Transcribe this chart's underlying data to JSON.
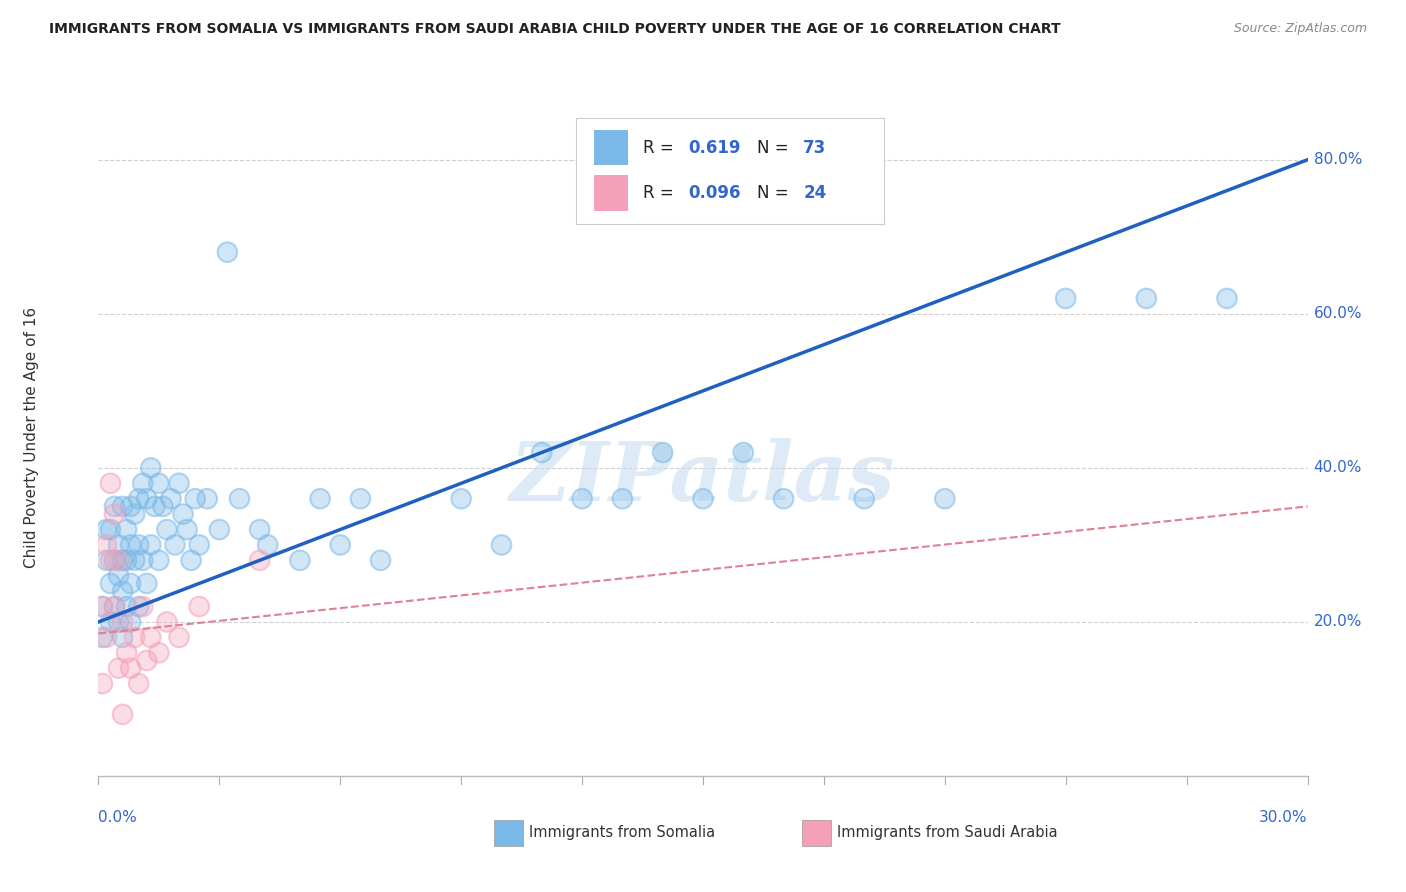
{
  "title": "IMMIGRANTS FROM SOMALIA VS IMMIGRANTS FROM SAUDI ARABIA CHILD POVERTY UNDER THE AGE OF 16 CORRELATION CHART",
  "source": "Source: ZipAtlas.com",
  "ylabel": "Child Poverty Under the Age of 16",
  "xlim": [
    0.0,
    0.3
  ],
  "ylim": [
    0.0,
    0.88
  ],
  "ytick_values": [
    0.2,
    0.4,
    0.6,
    0.8
  ],
  "ytick_labels": [
    "20.0%",
    "40.0%",
    "60.0%",
    "80.0%"
  ],
  "somalia_color": "#7ab8e8",
  "saudi_color": "#f4a0b8",
  "somalia_line_color": "#2060c0",
  "saudi_line_color": "#e08090",
  "r_n_color": "#3366cc",
  "somalia_R": "0.619",
  "somalia_N": "73",
  "saudi_R": "0.096",
  "saudi_N": "24",
  "legend_label_somalia": "Immigrants from Somalia",
  "legend_label_saudi": "Immigrants from Saudi Arabia",
  "watermark": "ZIPatlas",
  "somalia_trendline_x": [
    0.0,
    0.3
  ],
  "somalia_trendline_y": [
    0.2,
    0.8
  ],
  "saudi_trendline_x": [
    0.0,
    0.3
  ],
  "saudi_trendline_y": [
    0.185,
    0.35
  ],
  "somalia_x": [
    0.001,
    0.001,
    0.002,
    0.002,
    0.003,
    0.003,
    0.003,
    0.004,
    0.004,
    0.004,
    0.005,
    0.005,
    0.005,
    0.006,
    0.006,
    0.006,
    0.006,
    0.007,
    0.007,
    0.007,
    0.008,
    0.008,
    0.008,
    0.008,
    0.009,
    0.009,
    0.01,
    0.01,
    0.01,
    0.011,
    0.011,
    0.012,
    0.012,
    0.013,
    0.013,
    0.014,
    0.015,
    0.015,
    0.016,
    0.017,
    0.018,
    0.019,
    0.02,
    0.021,
    0.022,
    0.023,
    0.024,
    0.025,
    0.027,
    0.03,
    0.032,
    0.035,
    0.04,
    0.042,
    0.05,
    0.055,
    0.06,
    0.065,
    0.07,
    0.09,
    0.1,
    0.11,
    0.12,
    0.13,
    0.14,
    0.15,
    0.16,
    0.17,
    0.19,
    0.21,
    0.24,
    0.26,
    0.28
  ],
  "somalia_y": [
    0.22,
    0.18,
    0.28,
    0.32,
    0.25,
    0.2,
    0.32,
    0.28,
    0.22,
    0.35,
    0.2,
    0.26,
    0.3,
    0.18,
    0.24,
    0.28,
    0.35,
    0.22,
    0.28,
    0.32,
    0.2,
    0.25,
    0.3,
    0.35,
    0.28,
    0.34,
    0.22,
    0.3,
    0.36,
    0.28,
    0.38,
    0.25,
    0.36,
    0.3,
    0.4,
    0.35,
    0.28,
    0.38,
    0.35,
    0.32,
    0.36,
    0.3,
    0.38,
    0.34,
    0.32,
    0.28,
    0.36,
    0.3,
    0.36,
    0.32,
    0.68,
    0.36,
    0.32,
    0.3,
    0.28,
    0.36,
    0.3,
    0.36,
    0.28,
    0.36,
    0.3,
    0.42,
    0.36,
    0.36,
    0.42,
    0.36,
    0.42,
    0.36,
    0.36,
    0.36,
    0.62,
    0.62,
    0.62
  ],
  "saudi_x": [
    0.001,
    0.001,
    0.002,
    0.002,
    0.003,
    0.003,
    0.004,
    0.004,
    0.005,
    0.005,
    0.006,
    0.006,
    0.007,
    0.008,
    0.009,
    0.01,
    0.011,
    0.012,
    0.013,
    0.015,
    0.017,
    0.02,
    0.025,
    0.04
  ],
  "saudi_y": [
    0.22,
    0.12,
    0.18,
    0.3,
    0.28,
    0.38,
    0.22,
    0.34,
    0.14,
    0.28,
    0.08,
    0.2,
    0.16,
    0.14,
    0.18,
    0.12,
    0.22,
    0.15,
    0.18,
    0.16,
    0.2,
    0.18,
    0.22,
    0.28
  ]
}
